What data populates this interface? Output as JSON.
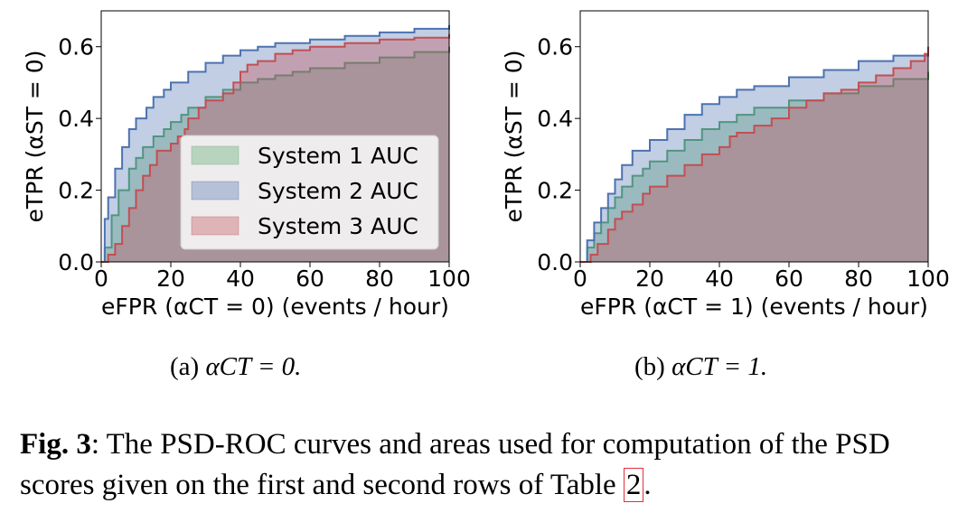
{
  "chart_data": [
    {
      "type": "area",
      "title": "",
      "xlabel": "eFPR (αCT = 0) (events / hour)",
      "ylabel": "eTPR (αST = 0)",
      "xlim": [
        0,
        100
      ],
      "ylim": [
        0,
        0.7
      ],
      "xticks": [
        "0",
        "20",
        "40",
        "60",
        "80",
        "100"
      ],
      "yticks": [
        "0.0",
        "0.2",
        "0.4",
        "0.6"
      ],
      "legend": "inside-right",
      "series": [
        {
          "name": "System 1 AUC",
          "color": "#55a868",
          "x": [
            0,
            1,
            3,
            5,
            8,
            10,
            12,
            15,
            18,
            20,
            23,
            25,
            30,
            35,
            40,
            45,
            50,
            55,
            60,
            70,
            80,
            90,
            100
          ],
          "y": [
            0,
            0.04,
            0.13,
            0.2,
            0.26,
            0.29,
            0.32,
            0.35,
            0.37,
            0.39,
            0.41,
            0.43,
            0.46,
            0.48,
            0.5,
            0.51,
            0.52,
            0.53,
            0.54,
            0.555,
            0.57,
            0.585,
            0.6
          ]
        },
        {
          "name": "System 2 AUC",
          "color": "#4c72b0",
          "x": [
            0,
            1,
            2,
            4,
            6,
            8,
            10,
            13,
            15,
            18,
            20,
            25,
            30,
            35,
            40,
            45,
            50,
            60,
            70,
            80,
            90,
            100
          ],
          "y": [
            0,
            0.12,
            0.18,
            0.26,
            0.32,
            0.37,
            0.4,
            0.43,
            0.46,
            0.48,
            0.5,
            0.53,
            0.555,
            0.575,
            0.59,
            0.6,
            0.61,
            0.62,
            0.63,
            0.64,
            0.65,
            0.66
          ]
        },
        {
          "name": "System 3 AUC",
          "color": "#c44e52",
          "x": [
            0,
            2,
            4,
            6,
            8,
            10,
            12,
            14,
            16,
            20,
            22,
            24,
            25,
            28,
            30,
            35,
            38,
            40,
            42,
            45,
            50,
            55,
            60,
            70,
            80,
            90,
            100
          ],
          "y": [
            0,
            0.02,
            0.05,
            0.1,
            0.15,
            0.2,
            0.24,
            0.27,
            0.31,
            0.33,
            0.35,
            0.37,
            0.4,
            0.43,
            0.45,
            0.47,
            0.5,
            0.53,
            0.55,
            0.56,
            0.58,
            0.59,
            0.6,
            0.61,
            0.62,
            0.625,
            0.635
          ]
        }
      ]
    },
    {
      "type": "area",
      "title": "",
      "xlabel": "eFPR (αCT = 1) (events / hour)",
      "ylabel": "eTPR (αST = 0)",
      "xlim": [
        0,
        100
      ],
      "ylim": [
        0,
        0.7
      ],
      "xticks": [
        "0",
        "20",
        "40",
        "60",
        "80",
        "100"
      ],
      "yticks": [
        "0.0",
        "0.2",
        "0.4",
        "0.6"
      ],
      "legend": "none",
      "series": [
        {
          "name": "System 1",
          "color": "#55a868",
          "x": [
            0,
            2,
            4,
            6,
            8,
            10,
            12,
            15,
            18,
            20,
            25,
            30,
            35,
            40,
            45,
            50,
            60,
            70,
            80,
            90,
            100
          ],
          "y": [
            0,
            0.04,
            0.08,
            0.11,
            0.15,
            0.18,
            0.21,
            0.24,
            0.26,
            0.28,
            0.31,
            0.34,
            0.37,
            0.39,
            0.41,
            0.43,
            0.45,
            0.47,
            0.49,
            0.51,
            0.53
          ]
        },
        {
          "name": "System 2",
          "color": "#4c72b0",
          "x": [
            0,
            2,
            4,
            6,
            8,
            10,
            12,
            15,
            20,
            25,
            30,
            35,
            40,
            45,
            50,
            60,
            70,
            80,
            90,
            100
          ],
          "y": [
            0,
            0.06,
            0.11,
            0.15,
            0.19,
            0.23,
            0.27,
            0.31,
            0.34,
            0.37,
            0.41,
            0.44,
            0.46,
            0.48,
            0.49,
            0.515,
            0.535,
            0.56,
            0.575,
            0.58
          ]
        },
        {
          "name": "System 3",
          "color": "#c44e52",
          "x": [
            0,
            3,
            5,
            8,
            10,
            12,
            15,
            18,
            20,
            25,
            30,
            35,
            40,
            43,
            45,
            50,
            55,
            60,
            65,
            70,
            75,
            80,
            85,
            90,
            95,
            99,
            100
          ],
          "y": [
            0,
            0.02,
            0.05,
            0.09,
            0.12,
            0.14,
            0.16,
            0.19,
            0.21,
            0.24,
            0.27,
            0.3,
            0.32,
            0.35,
            0.36,
            0.38,
            0.4,
            0.43,
            0.45,
            0.47,
            0.48,
            0.5,
            0.52,
            0.54,
            0.56,
            0.58,
            0.6
          ]
        }
      ]
    }
  ],
  "captions": {
    "a_prefix": "(a) ",
    "a_math": "αCT = 0.",
    "b_prefix": "(b) ",
    "b_math": "αCT = 1."
  },
  "figure_caption": {
    "label": "Fig. 3",
    "text_before_ref": ": The PSD-ROC curves and areas used for computation of the PSD scores given on the first and second rows of Table ",
    "ref": "2",
    "text_after_ref": "."
  }
}
